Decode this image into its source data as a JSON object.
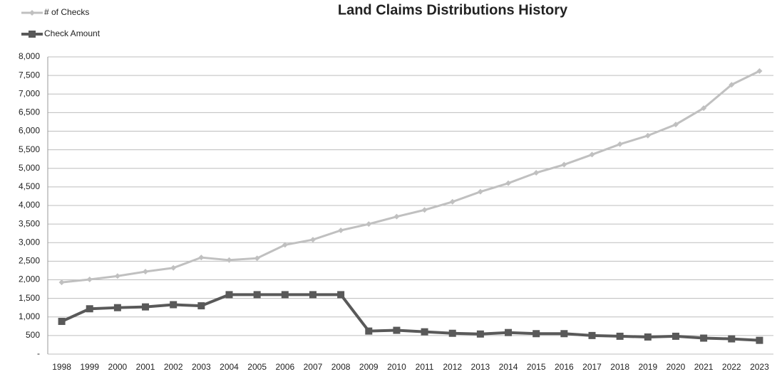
{
  "chart_data": {
    "type": "line",
    "title": "Land Claims Distributions History",
    "categories": [
      "1998",
      "1999",
      "2000",
      "2001",
      "2002",
      "2003",
      "2004",
      "2005",
      "2006",
      "2007",
      "2008",
      "2009",
      "2010",
      "2011",
      "2012",
      "2013",
      "2014",
      "2015",
      "2016",
      "2017",
      "2018",
      "2019",
      "2020",
      "2021",
      "2022",
      "2023"
    ],
    "series": [
      {
        "name": "# of Checks",
        "color": "#c0c0c0",
        "marker": "diamond",
        "values": [
          1930,
          2010,
          2100,
          2220,
          2320,
          2600,
          2530,
          2580,
          2940,
          3080,
          3330,
          3500,
          3700,
          3880,
          4100,
          4370,
          4600,
          4880,
          5100,
          5370,
          5650,
          5880,
          6180,
          6620,
          7250,
          7620
        ]
      },
      {
        "name": "Check Amount",
        "color": "#595959",
        "marker": "square",
        "values": [
          880,
          1220,
          1250,
          1270,
          1330,
          1300,
          1600,
          1600,
          1600,
          1600,
          1600,
          620,
          640,
          600,
          560,
          540,
          580,
          550,
          550,
          500,
          480,
          460,
          480,
          430,
          410,
          370
        ]
      }
    ],
    "ylim": [
      0,
      8000
    ],
    "yticks": [
      {
        "value": 0,
        "label": "-"
      },
      500,
      {
        "value": 1000,
        "label": "1,000"
      },
      {
        "value": 1500,
        "label": "1,500"
      },
      {
        "value": 2000,
        "label": "2,000"
      },
      {
        "value": 2500,
        "label": "2,500"
      },
      {
        "value": 3000,
        "label": "3,000"
      },
      {
        "value": 3500,
        "label": "3,500"
      },
      {
        "value": 4000,
        "label": "4,000"
      },
      {
        "value": 4500,
        "label": "4,500"
      },
      {
        "value": 5000,
        "label": "5,000"
      },
      {
        "value": 5500,
        "label": "5,500"
      },
      {
        "value": 6000,
        "label": "6,000"
      },
      {
        "value": 6500,
        "label": "6,500"
      },
      {
        "value": 7000,
        "label": "7,000"
      },
      {
        "value": 7500,
        "label": "7,500"
      },
      {
        "value": 8000,
        "label": "8,000"
      }
    ],
    "grid": true,
    "legend": "top-left"
  }
}
